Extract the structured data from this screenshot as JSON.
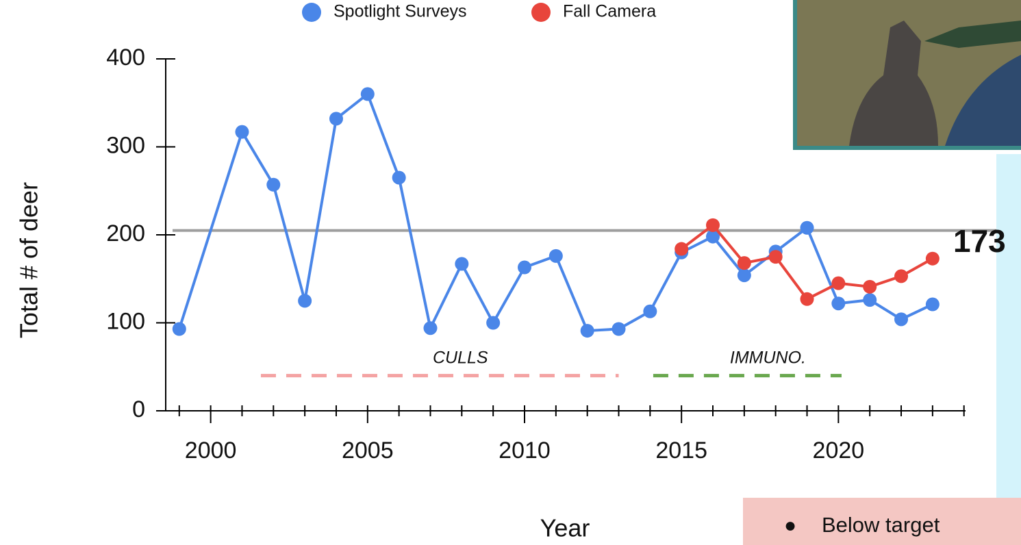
{
  "chart_data": {
    "type": "line",
    "x_label": "Year",
    "y_label": "Total # of deer",
    "x": [
      1999,
      2001,
      2002,
      2003,
      2004,
      2005,
      2006,
      2007,
      2008,
      2009,
      2010,
      2011,
      2012,
      2013,
      2014,
      2015,
      2016,
      2017,
      2018,
      2019,
      2020,
      2021,
      2022,
      2023
    ],
    "series": [
      {
        "name": "Spotlight Surveys",
        "color": "#4a86e8",
        "x": [
          1999,
          2001,
          2002,
          2003,
          2004,
          2005,
          2006,
          2007,
          2008,
          2009,
          2010,
          2011,
          2012,
          2013,
          2014,
          2015,
          2016,
          2017,
          2018,
          2019,
          2020,
          2021,
          2022,
          2023
        ],
        "values": [
          93,
          317,
          257,
          125,
          332,
          360,
          265,
          94,
          167,
          100,
          163,
          176,
          91,
          93,
          113,
          180,
          198,
          154,
          181,
          208,
          122,
          126,
          104,
          121
        ]
      },
      {
        "name": "Fall Camera",
        "color": "#e8453c",
        "x": [
          2015,
          2016,
          2017,
          2018,
          2019,
          2020,
          2021,
          2022,
          2023
        ],
        "values": [
          184,
          211,
          168,
          175,
          127,
          145,
          141,
          153,
          173
        ]
      }
    ],
    "xlim": [
      1998.35,
      2024.05
    ],
    "xticks": [
      2000,
      2005,
      2010,
      2015,
      2020
    ],
    "xminor_ticks": [
      1999,
      2001,
      2002,
      2003,
      2004,
      2006,
      2007,
      2008,
      2009,
      2011,
      2012,
      2013,
      2014,
      2016,
      2017,
      2018,
      2019,
      2021,
      2022,
      2023,
      2024
    ],
    "ylim": [
      0,
      400
    ],
    "yticks": [
      0,
      100,
      200,
      300,
      400
    ],
    "target_line": {
      "value": 205,
      "color": "#9e9e9e"
    },
    "periods": [
      {
        "text": "CULLS",
        "start": 2001.6,
        "end": 2013,
        "value": 40,
        "color": "#f4a3a3"
      },
      {
        "text": "IMMUNO.",
        "start": 2014.1,
        "end": 2020.1,
        "value": 40,
        "color": "#6aa84f"
      }
    ],
    "legend": "top",
    "note": "Below target"
  }
}
